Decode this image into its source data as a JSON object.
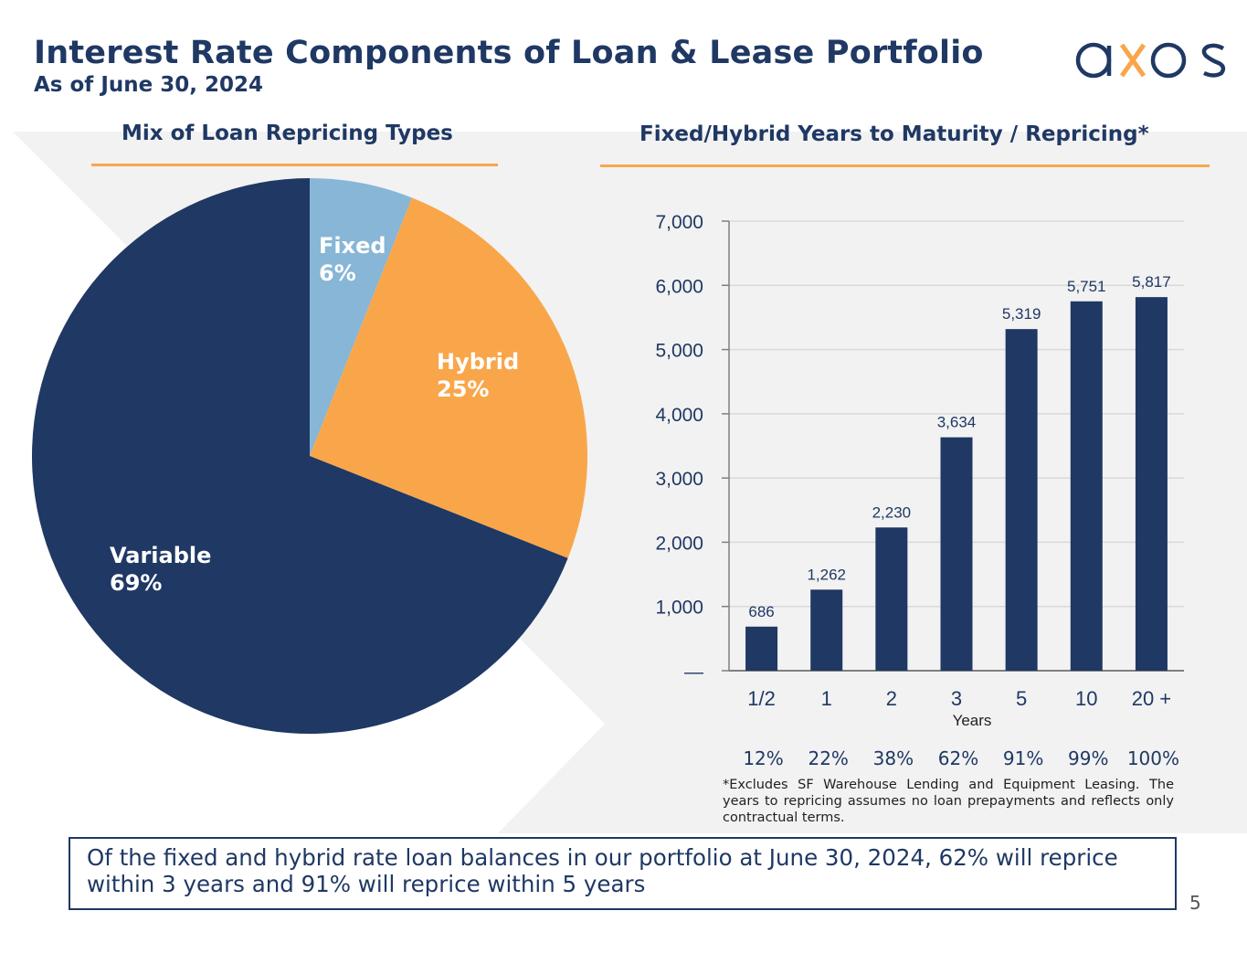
{
  "header": {
    "title": "Interest Rate Components of Loan & Lease Portfolio",
    "subtitle": "As of June 30, 2024",
    "logo_text": "axos"
  },
  "colors": {
    "navy": "#1f3864",
    "orange": "#f9a64a",
    "light_blue": "#87b6d6",
    "background_gray": "#f2f2f2"
  },
  "chart_data": [
    {
      "type": "pie",
      "title": "Mix of Loan Repricing Types",
      "slices": [
        {
          "label": "Fixed",
          "value": 6,
          "display": "6%",
          "color": "#87b6d6"
        },
        {
          "label": "Hybrid",
          "value": 25,
          "display": "25%",
          "color": "#f9a64a"
        },
        {
          "label": "Variable",
          "value": 69,
          "display": "69%",
          "color": "#1f3864"
        }
      ]
    },
    {
      "type": "bar",
      "title": "Fixed/Hybrid Years to Maturity / Repricing",
      "title_marker": "*",
      "categories": [
        "1/2",
        "1",
        "2",
        "3",
        "5",
        "10",
        "20 +"
      ],
      "values": [
        686,
        1262,
        2230,
        3634,
        5319,
        5751,
        5817
      ],
      "value_labels": [
        "686",
        "1,262",
        "2,230",
        "3,634",
        "5,319",
        "5,751",
        "5,817"
      ],
      "cumulative_percent": [
        "12%",
        "22%",
        "38%",
        "62%",
        "91%",
        "99%",
        "100%"
      ],
      "xlabel": "Years",
      "ylabel": "",
      "ylim": [
        0,
        7000
      ],
      "yticks": [
        0,
        1000,
        2000,
        3000,
        4000,
        5000,
        6000,
        7000
      ],
      "ytick_labels": [
        "—",
        "1,000",
        "2,000",
        "3,000",
        "4,000",
        "5,000",
        "6,000",
        "7,000"
      ],
      "grid": true,
      "bar_color": "#1f3864"
    }
  ],
  "footnote": "*Excludes SF Warehouse Lending and Equipment Leasing. The years to repricing assumes no loan prepayments and reflects only contractual terms.",
  "callout": "Of the fixed and hybrid rate loan balances in our portfolio at June 30, 2024, 62% will reprice within 3 years and 91% will reprice within 5 years",
  "page_number": "5"
}
